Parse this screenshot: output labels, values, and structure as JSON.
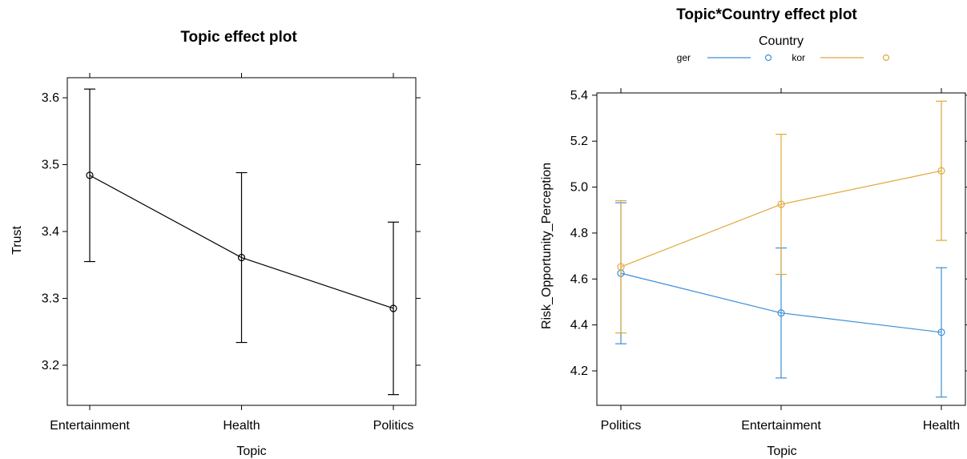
{
  "chart_data": [
    {
      "type": "line",
      "title": "Topic effect plot",
      "xlabel": "Topic",
      "ylabel": "Trust",
      "categories": [
        "Entertainment",
        "Health",
        "Politics"
      ],
      "yticks": [
        "3.2",
        "3.3",
        "3.4",
        "3.5",
        "3.6"
      ],
      "ylim": [
        3.14,
        3.63
      ],
      "grid": false,
      "series": [
        {
          "color": "#000000",
          "values": [
            3.484,
            3.361,
            3.285
          ],
          "lower": [
            3.355,
            3.234,
            3.156
          ],
          "upper": [
            3.613,
            3.488,
            3.414
          ]
        }
      ]
    },
    {
      "type": "line",
      "title": "Topic*Country effect plot",
      "xlabel": "Topic",
      "ylabel": "Risk_Opportunity_Perception",
      "categories": [
        "Politics",
        "Entertainment",
        "Health"
      ],
      "yticks": [
        "4.2",
        "4.4",
        "4.6",
        "4.8",
        "5.0",
        "5.2",
        "5.4"
      ],
      "ylim": [
        4.05,
        5.41
      ],
      "grid": false,
      "legend": {
        "title": "Country",
        "position": "top"
      },
      "series": [
        {
          "name": "ger",
          "color": "#3b8fd9",
          "values": [
            4.625,
            4.452,
            4.368
          ],
          "lower": [
            4.318,
            4.169,
            4.086
          ],
          "upper": [
            4.932,
            4.735,
            4.649
          ]
        },
        {
          "name": "kor",
          "color": "#e0a83a",
          "values": [
            4.653,
            4.925,
            5.071
          ],
          "lower": [
            4.365,
            4.62,
            4.768
          ],
          "upper": [
            4.941,
            5.23,
            5.374
          ]
        }
      ]
    }
  ]
}
